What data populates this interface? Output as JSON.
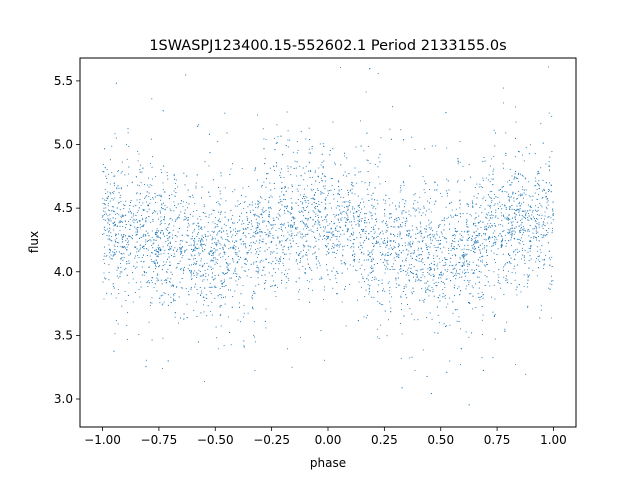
{
  "chart_data": {
    "type": "scatter",
    "title": "1SWASPJ123400.15-552602.1 Period 2133155.0s",
    "xlabel": "phase",
    "ylabel": "flux",
    "xlim": [
      -1.1,
      1.1
    ],
    "ylim": [
      2.78,
      5.68
    ],
    "xticks": [
      -1.0,
      -0.75,
      -0.5,
      -0.25,
      0.0,
      0.25,
      0.5,
      0.75,
      1.0
    ],
    "xtick_labels": [
      "−1.00",
      "−0.75",
      "−0.50",
      "−0.25",
      "0.00",
      "0.25",
      "0.50",
      "0.75",
      "1.00"
    ],
    "yticks": [
      3.0,
      3.5,
      4.0,
      4.5,
      5.0,
      5.5
    ],
    "ytick_labels": [
      "3.0",
      "3.5",
      "4.0",
      "4.5",
      "5.0",
      "5.5"
    ],
    "grid": false,
    "marker_color": "#1f77b4",
    "series": [
      {
        "x_range": [
          -1.0,
          1.0
        ],
        "phase_profile": {
          "phase": [
            0.0,
            0.1,
            0.2,
            0.3,
            0.4,
            0.5,
            0.6,
            0.7,
            0.8,
            0.9,
            1.0
          ],
          "mean_flux": [
            4.42,
            4.34,
            4.25,
            4.22,
            4.2,
            4.12,
            4.15,
            4.27,
            4.38,
            4.4,
            4.42
          ]
        },
        "typical_scatter": 0.22,
        "flux_range_observed": [
          2.9,
          5.65
        ]
      }
    ]
  }
}
